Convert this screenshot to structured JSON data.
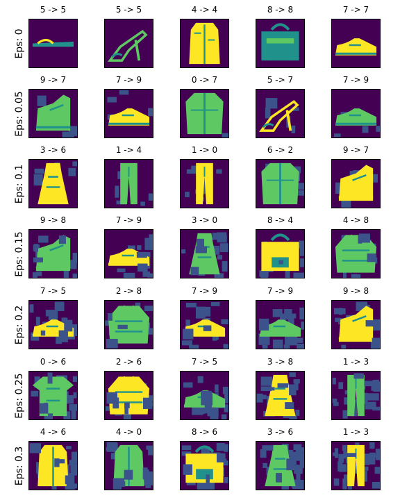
{
  "colors": {
    "bg": "#440154",
    "dark": "#3b528b",
    "mid": "#21918c",
    "light": "#5ec962",
    "bright": "#fde725"
  },
  "rows": [
    {
      "label": "Eps: 0",
      "cells": [
        {
          "title": "5 -> 5",
          "item": "sandal"
        },
        {
          "title": "5 -> 5",
          "item": "heeled-sandal"
        },
        {
          "title": "4 -> 4",
          "item": "coat"
        },
        {
          "title": "8 -> 8",
          "item": "bag"
        },
        {
          "title": "7 -> 7",
          "item": "sneaker"
        }
      ]
    },
    {
      "label": "Eps: 0.05",
      "cells": [
        {
          "title": "9 -> 7",
          "item": "ankle-boot"
        },
        {
          "title": "7 -> 9",
          "item": "sneaker"
        },
        {
          "title": "0 -> 7",
          "item": "shirt"
        },
        {
          "title": "5 -> 7",
          "item": "heeled-sandal"
        },
        {
          "title": "7 -> 9",
          "item": "sneaker"
        }
      ]
    },
    {
      "label": "Eps: 0.1",
      "cells": [
        {
          "title": "3 -> 6",
          "item": "dress"
        },
        {
          "title": "1 -> 4",
          "item": "trouser"
        },
        {
          "title": "1 -> 0",
          "item": "trouser"
        },
        {
          "title": "6 -> 2",
          "item": "shirt"
        },
        {
          "title": "9 -> 7",
          "item": "ankle-boot"
        }
      ]
    },
    {
      "label": "Eps: 0.15",
      "cells": [
        {
          "title": "9 -> 8",
          "item": "ankle-boot"
        },
        {
          "title": "7 -> 9",
          "item": "sneaker"
        },
        {
          "title": "3 -> 0",
          "item": "dress"
        },
        {
          "title": "8 -> 4",
          "item": "bag"
        },
        {
          "title": "4 -> 8",
          "item": "pullover"
        }
      ]
    },
    {
      "label": "Eps: 0.2",
      "cells": [
        {
          "title": "7 -> 5",
          "item": "sneaker"
        },
        {
          "title": "2 -> 8",
          "item": "pullover"
        },
        {
          "title": "7 -> 9",
          "item": "sneaker"
        },
        {
          "title": "7 -> 9",
          "item": "sneaker"
        },
        {
          "title": "9 -> 8",
          "item": "ankle-boot"
        }
      ]
    },
    {
      "label": "Eps: 0.25",
      "cells": [
        {
          "title": "0 -> 6",
          "item": "tshirt"
        },
        {
          "title": "2 -> 6",
          "item": "pullover"
        },
        {
          "title": "7 -> 5",
          "item": "sneaker"
        },
        {
          "title": "3 -> 8",
          "item": "dress"
        },
        {
          "title": "1 -> 3",
          "item": "trouser"
        }
      ]
    },
    {
      "label": "Eps: 0.3",
      "cells": [
        {
          "title": "4 -> 6",
          "item": "coat"
        },
        {
          "title": "4 -> 0",
          "item": "coat"
        },
        {
          "title": "8 -> 6",
          "item": "bag"
        },
        {
          "title": "3 -> 6",
          "item": "dress"
        },
        {
          "title": "1 -> 3",
          "item": "trouser"
        }
      ]
    }
  ]
}
